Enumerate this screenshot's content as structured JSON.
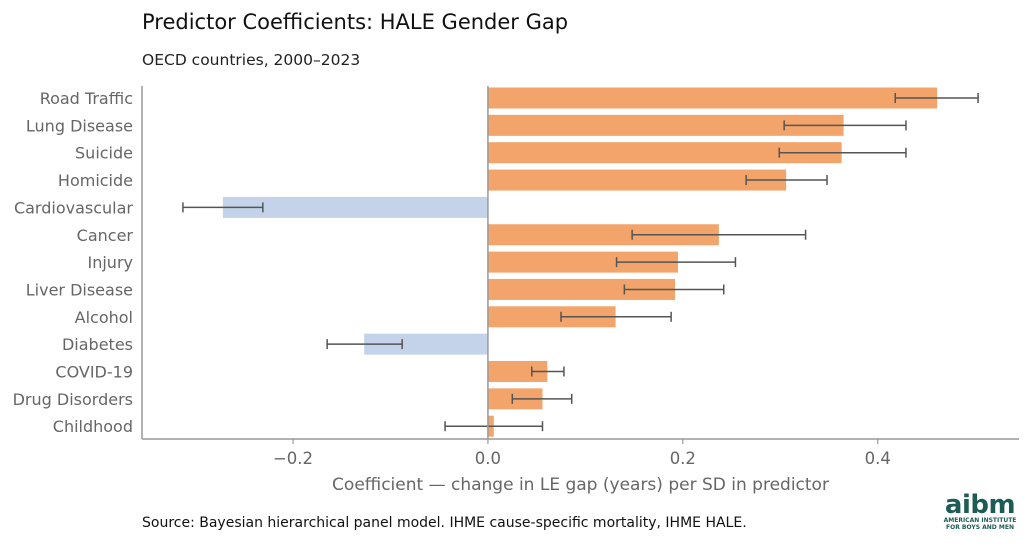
{
  "header": {
    "title": "Predictor Coefficients: HALE Gender Gap",
    "subtitle": "OECD countries, 2000–2023"
  },
  "footer": {
    "source": "Source: Bayesian hierarchical panel model. IHME cause-specific mortality, IHME HALE."
  },
  "logo": {
    "word": "aibm",
    "line1": "AMERICAN INSTITUTE",
    "line2": "FOR BOYS AND MEN"
  },
  "colors": {
    "positive": "#f2a46b",
    "negative": "#c5d3ea",
    "error_bar": "#555555",
    "axis": "#999999",
    "zero_line": "#999999"
  },
  "chart_data": {
    "type": "bar",
    "orientation": "horizontal",
    "xlabel": "Coefficient — change in LE gap (years) per SD in predictor",
    "ylabel": "",
    "xlim": [
      -0.355,
      0.545
    ],
    "xticks": [
      -0.2,
      0.0,
      0.2,
      0.4
    ],
    "xtick_labels": [
      "−0.2",
      "0.0",
      "0.2",
      "0.4"
    ],
    "grid": false,
    "categories": [
      "Road Traffic",
      "Lung Disease",
      "Suicide",
      "Homicide",
      "Cardiovascular",
      "Cancer",
      "Injury",
      "Liver Disease",
      "Alcohol",
      "Diabetes",
      "COVID-19",
      "Drug Disorders",
      "Childhood"
    ],
    "values": [
      0.461,
      0.365,
      0.363,
      0.306,
      -0.272,
      0.237,
      0.195,
      0.192,
      0.131,
      -0.127,
      0.061,
      0.056,
      0.006
    ],
    "ci_low": [
      0.418,
      0.304,
      0.299,
      0.265,
      -0.313,
      0.148,
      0.132,
      0.14,
      0.075,
      -0.165,
      0.045,
      0.025,
      -0.044
    ],
    "ci_high": [
      0.503,
      0.429,
      0.429,
      0.348,
      -0.231,
      0.326,
      0.254,
      0.242,
      0.188,
      -0.088,
      0.078,
      0.086,
      0.056
    ]
  }
}
